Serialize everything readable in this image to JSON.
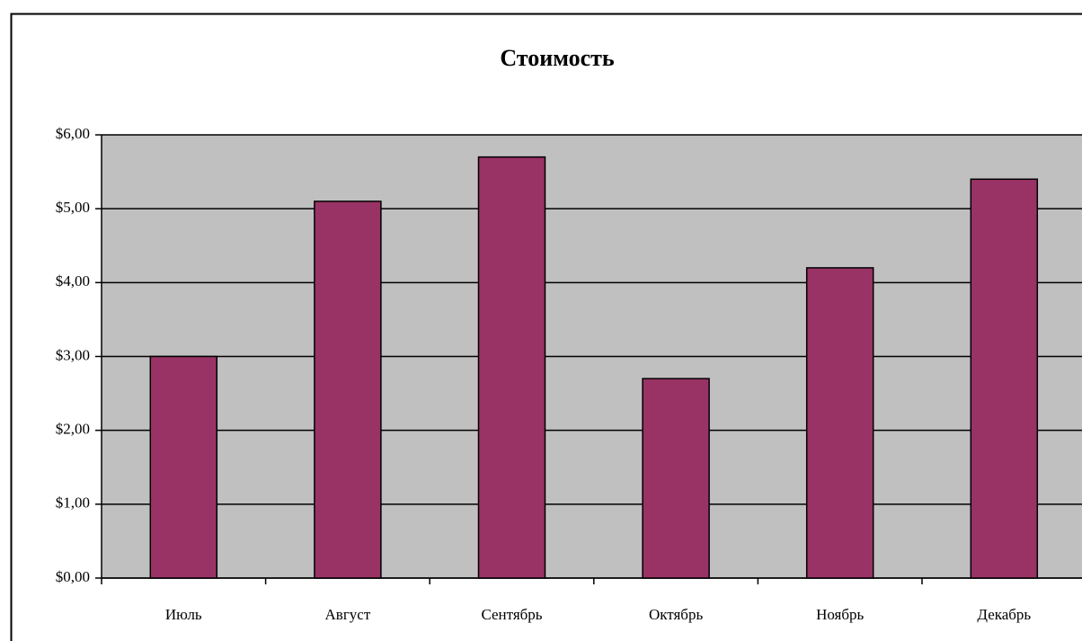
{
  "chart_data": {
    "type": "bar",
    "title": "Стоимость",
    "categories": [
      "Июль",
      "Август",
      "Сентябрь",
      "Октябрь",
      "Ноябрь",
      "Декабрь"
    ],
    "values": [
      3.0,
      5.1,
      5.7,
      2.7,
      4.2,
      5.4
    ],
    "color": "#993366",
    "ylim": [
      0,
      6
    ],
    "yticks": [
      {
        "value": 0,
        "label": "$0,00"
      },
      {
        "value": 1,
        "label": "$1,00"
      },
      {
        "value": 2,
        "label": "$2,00"
      },
      {
        "value": 3,
        "label": "$3,00"
      },
      {
        "value": 4,
        "label": "$4,00"
      },
      {
        "value": 5,
        "label": "$5,00"
      },
      {
        "value": 6,
        "label": "$6,00"
      }
    ],
    "grid": true
  }
}
